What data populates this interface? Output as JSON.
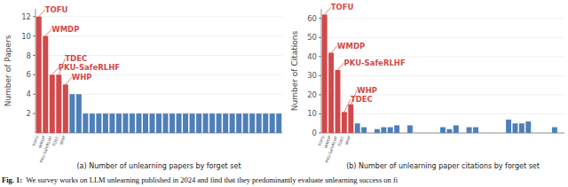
{
  "chart_data": [
    {
      "type": "bar",
      "title": "(a) Number of unlearning papers by forget set",
      "ylabel": "Number of Papers",
      "categories": [
        "TOFU",
        "WMDP",
        "PKU-SafeRLHF",
        "TDEC",
        "WHP",
        null,
        null,
        null,
        null,
        null,
        null,
        null,
        null,
        null,
        null,
        null,
        null,
        null,
        null,
        null,
        null,
        null,
        null,
        null,
        null,
        null,
        null,
        null,
        null,
        null,
        null,
        null,
        null,
        null,
        null,
        null,
        null
      ],
      "values": [
        12,
        10,
        6,
        6,
        5,
        4,
        4,
        2,
        2,
        2,
        2,
        2,
        2,
        2,
        2,
        2,
        2,
        2,
        2,
        2,
        2,
        2,
        2,
        2,
        2,
        2,
        2,
        2,
        2,
        2,
        2,
        2,
        2,
        2,
        2,
        2,
        2
      ],
      "colors": [
        "#d0494b",
        "#d0494b",
        "#d0494b",
        "#d0494b",
        "#d0494b",
        "#4f7fb8",
        "#4f7fb8",
        "#4f7fb8",
        "#4f7fb8",
        "#4f7fb8",
        "#4f7fb8",
        "#4f7fb8",
        "#4f7fb8",
        "#4f7fb8",
        "#4f7fb8",
        "#4f7fb8",
        "#4f7fb8",
        "#4f7fb8",
        "#4f7fb8",
        "#4f7fb8",
        "#4f7fb8",
        "#4f7fb8",
        "#4f7fb8",
        "#4f7fb8",
        "#4f7fb8",
        "#4f7fb8",
        "#4f7fb8",
        "#4f7fb8",
        "#4f7fb8",
        "#4f7fb8",
        "#4f7fb8",
        "#4f7fb8",
        "#4f7fb8",
        "#4f7fb8",
        "#4f7fb8",
        "#4f7fb8",
        "#4f7fb8"
      ],
      "annotations": [
        "TOFU",
        "WMDP",
        "PKU-SafeRLHF",
        "TDEC",
        "WHP"
      ],
      "ylim": [
        0,
        12.8
      ],
      "yticks": [
        2,
        4,
        6,
        8,
        10,
        12
      ],
      "grid": true
    },
    {
      "type": "bar",
      "title": "(b) Number of unlearning paper citations by forget set",
      "ylabel": "Number of Citations",
      "categories": [
        "TOFU",
        "WMDP",
        "PKU-SafeRLHF",
        "TDEC",
        "WHP",
        null,
        null,
        null,
        null,
        null,
        null,
        null,
        null,
        null,
        null,
        null,
        null,
        null,
        null,
        null,
        null,
        null,
        null,
        null,
        null,
        null,
        null,
        null,
        null,
        null,
        null,
        null,
        null,
        null,
        null,
        null,
        null
      ],
      "values": [
        62,
        42,
        33,
        11,
        15,
        5,
        3,
        0,
        2,
        3,
        3,
        4,
        0,
        4,
        0,
        0,
        0,
        0,
        3,
        2,
        4,
        0,
        3,
        3,
        0,
        0,
        0,
        0,
        7,
        5,
        5,
        6,
        0,
        0,
        0,
        3,
        0
      ],
      "colors": [
        "#d0494b",
        "#d0494b",
        "#d0494b",
        "#d0494b",
        "#d0494b",
        "#4f7fb8",
        "#4f7fb8",
        "#4f7fb8",
        "#4f7fb8",
        "#4f7fb8",
        "#4f7fb8",
        "#4f7fb8",
        "#4f7fb8",
        "#4f7fb8",
        "#4f7fb8",
        "#4f7fb8",
        "#4f7fb8",
        "#4f7fb8",
        "#4f7fb8",
        "#4f7fb8",
        "#4f7fb8",
        "#4f7fb8",
        "#4f7fb8",
        "#4f7fb8",
        "#4f7fb8",
        "#4f7fb8",
        "#4f7fb8",
        "#4f7fb8",
        "#4f7fb8",
        "#4f7fb8",
        "#4f7fb8",
        "#4f7fb8",
        "#4f7fb8",
        "#4f7fb8",
        "#4f7fb8",
        "#4f7fb8",
        "#4f7fb8"
      ],
      "annotations": [
        "TOFU",
        "WMDP",
        "PKU-SafeRLHF",
        "TDEC",
        "WHP"
      ],
      "ylim": [
        0,
        65
      ],
      "yticks": [
        0,
        10,
        20,
        30,
        40,
        50,
        60
      ],
      "grid": true
    }
  ],
  "figure_caption": {
    "label": "Fig. 1:",
    "text": "We survey works on LLM unlearning published in 2024 and find that they predominantly evaluate unlearning success on fi"
  }
}
